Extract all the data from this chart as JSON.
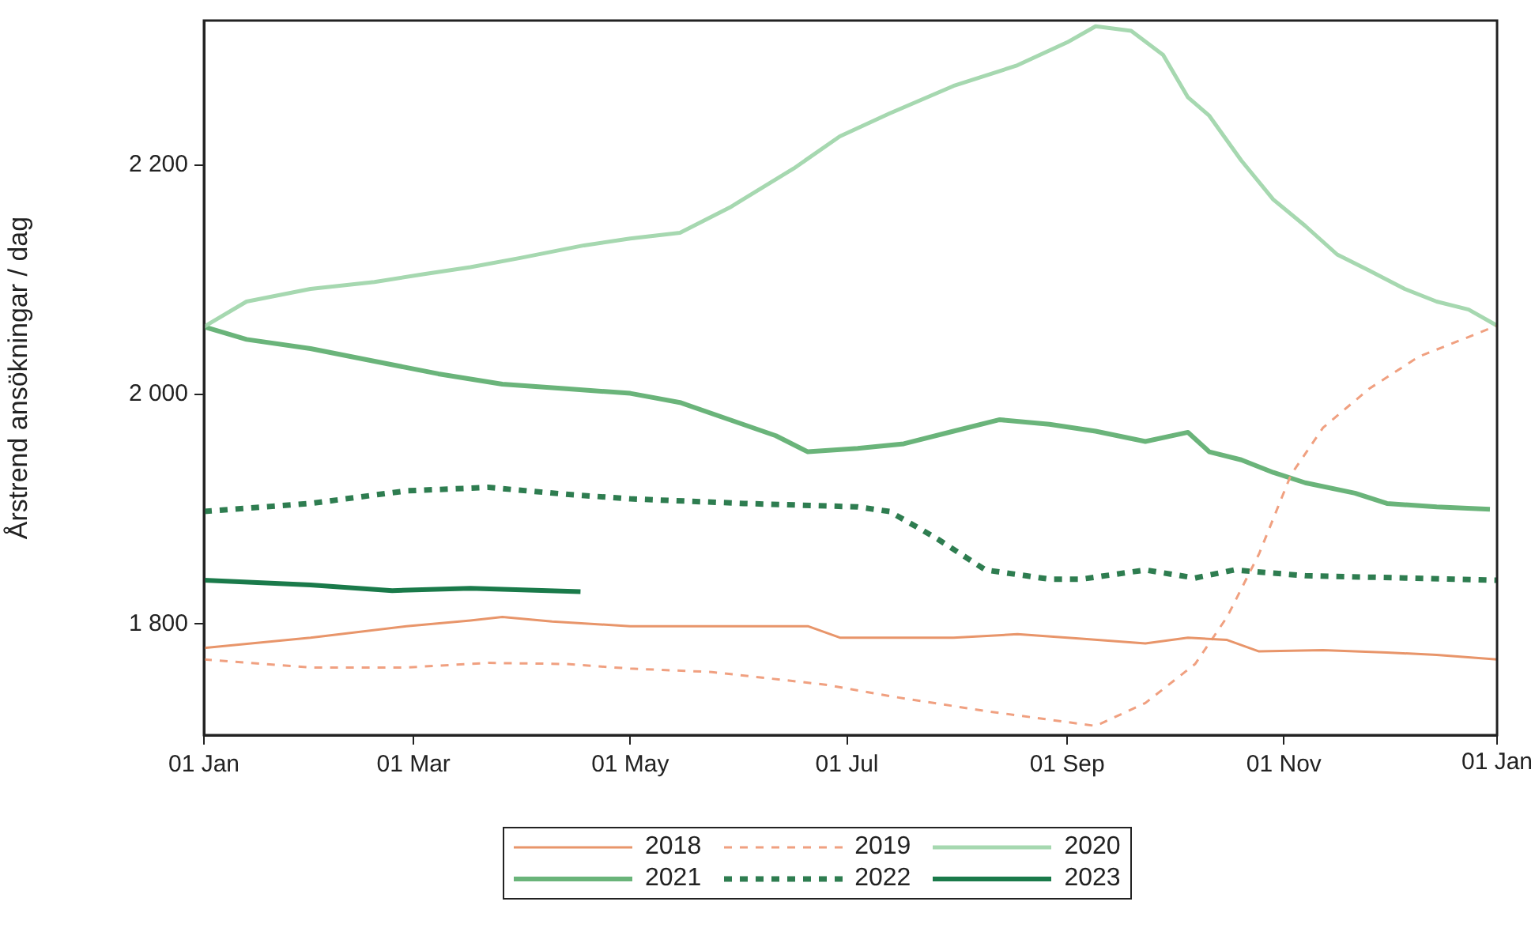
{
  "chart_data": {
    "type": "line",
    "ylabel": "Årstrend ansökningar / dag",
    "xlim": [
      "--01-01",
      "--12-31"
    ],
    "xticks": [
      {
        "value": "--01-01",
        "label": "01 Jan"
      },
      {
        "value": "--03-01",
        "label": "01 Mar"
      },
      {
        "value": "--05-01",
        "label": "01 May"
      },
      {
        "value": "--07-01",
        "label": "01 Jul"
      },
      {
        "value": "--09-01",
        "label": "01 Sep"
      },
      {
        "value": "--11-01",
        "label": "01 Nov"
      },
      {
        "value": "--12-31",
        "label": null
      }
    ],
    "annotations": [
      "01 Jan"
    ],
    "ylim": [
      1703,
      2326
    ],
    "yticks": [
      {
        "value": 1800,
        "label": "1 800"
      },
      {
        "value": 2000,
        "label": "2 000"
      },
      {
        "value": 2200,
        "label": "2 200"
      }
    ],
    "grid": false,
    "legend": "bottom",
    "marker": "none",
    "series": [
      {
        "name": "2018",
        "color": "#e8956a",
        "line_style": "solid",
        "x": [
          "--01-01",
          "--01-31",
          "--02-27",
          "--03-17",
          "--03-26",
          "--04-09",
          "--05-01",
          "--05-29",
          "--06-20",
          "--06-29",
          "--07-13",
          "--07-31",
          "--08-18",
          "--09-05",
          "--09-23",
          "--10-05",
          "--10-16",
          "--10-25",
          "--11-12",
          "--11-30",
          "--12-14",
          "--12-31"
        ],
        "values": [
          1779,
          1788,
          1798,
          1803,
          1806,
          1802,
          1798,
          1798,
          1798,
          1788,
          1788,
          1788,
          1791,
          1787,
          1783,
          1788,
          1786,
          1776,
          1777,
          1775,
          1773,
          1769
        ]
      },
      {
        "name": "2019",
        "color": "#f0a080",
        "line_style": "dashed",
        "x": [
          "--01-01",
          "--01-31",
          "--02-27",
          "--03-22",
          "--04-13",
          "--05-01",
          "--05-24",
          "--06-25",
          "--07-13",
          "--08-09",
          "--09-09",
          "--09-23",
          "--10-07",
          "--10-16",
          "--10-25",
          "--11-03",
          "--11-12",
          "--11-25",
          "--12-09",
          "--12-31"
        ],
        "values": [
          1769,
          1762,
          1762,
          1766,
          1765,
          1761,
          1758,
          1747,
          1737,
          1724,
          1711,
          1731,
          1765,
          1806,
          1861,
          1930,
          1971,
          2005,
          2033,
          2060
        ]
      },
      {
        "name": "2020",
        "color": "#a6d8b0",
        "line_style": "solid",
        "x": [
          "--01-01",
          "--01-13",
          "--01-31",
          "--02-18",
          "--03-04",
          "--03-17",
          "--03-31",
          "--04-18",
          "--05-01",
          "--05-15",
          "--05-29",
          "--06-16",
          "--06-29",
          "--07-13",
          "--07-31",
          "--08-18",
          "--09-01",
          "--09-09",
          "--09-19",
          "--09-28",
          "--10-05",
          "--10-11",
          "--10-20",
          "--10-29",
          "--11-07",
          "--11-16",
          "--11-25",
          "--12-05",
          "--12-14",
          "--12-23",
          "--12-31"
        ],
        "values": [
          2059,
          2081,
          2092,
          2098,
          2105,
          2111,
          2119,
          2130,
          2136,
          2141,
          2163,
          2197,
          2225,
          2245,
          2269,
          2287,
          2307,
          2321,
          2317,
          2296,
          2259,
          2243,
          2204,
          2170,
          2147,
          2122,
          2108,
          2092,
          2081,
          2074,
          2060
        ]
      },
      {
        "name": "2021",
        "color": "#6ab47a",
        "line_style": "solid",
        "x": [
          "--01-01",
          "--01-13",
          "--01-31",
          "--02-18",
          "--03-08",
          "--03-26",
          "--04-13",
          "--05-01",
          "--05-15",
          "--05-29",
          "--06-11",
          "--06-20",
          "--07-04",
          "--07-17",
          "--07-31",
          "--08-13",
          "--08-27",
          "--09-09",
          "--09-23",
          "--10-05",
          "--10-11",
          "--10-20",
          "--10-29",
          "--11-07",
          "--11-21",
          "--11-30",
          "--12-14",
          "--12-29"
        ],
        "values": [
          2059,
          2048,
          2040,
          2029,
          2018,
          2009,
          2005,
          2001,
          1993,
          1978,
          1964,
          1950,
          1953,
          1957,
          1968,
          1978,
          1974,
          1968,
          1959,
          1967,
          1950,
          1943,
          1932,
          1923,
          1914,
          1905,
          1902,
          1900
        ]
      },
      {
        "name": "2022",
        "color": "#2e7d50",
        "line_style": "dashed",
        "x": [
          "--01-01",
          "--01-31",
          "--02-27",
          "--03-22",
          "--04-13",
          "--05-01",
          "--06-02",
          "--07-04",
          "--07-13",
          "--07-26",
          "--08-09",
          "--08-27",
          "--09-05",
          "--09-23",
          "--10-07",
          "--10-18",
          "--11-07",
          "--12-05",
          "--12-31"
        ],
        "values": [
          1898,
          1905,
          1916,
          1919,
          1913,
          1909,
          1905,
          1902,
          1898,
          1875,
          1847,
          1839,
          1839,
          1847,
          1840,
          1847,
          1842,
          1840,
          1838
        ]
      },
      {
        "name": "2023",
        "color": "#1a7a4a",
        "line_style": "solid",
        "x": [
          "--01-01",
          "--01-31",
          "--02-23",
          "--03-17",
          "--04-17"
        ],
        "values": [
          1838,
          1834,
          1829,
          1831,
          1828
        ]
      }
    ]
  }
}
